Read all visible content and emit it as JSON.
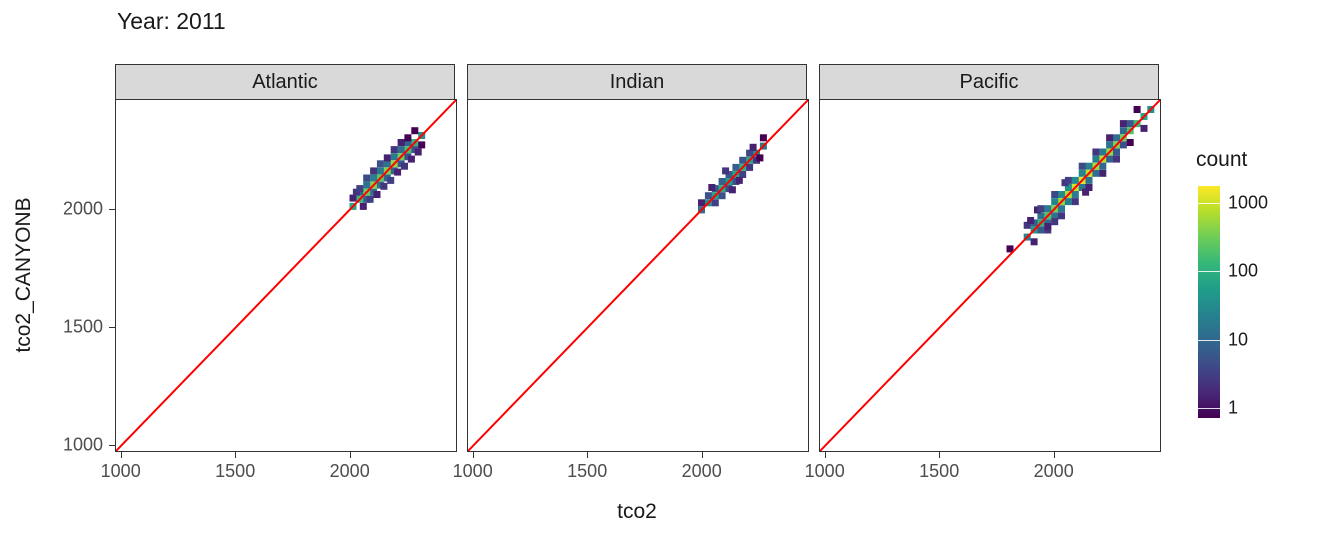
{
  "title": "Year: 2011",
  "chart_data": {
    "type": "heatmap",
    "subtype": "binned 2d density (geom_bin2d), faceted by ocean basin",
    "title": "Year: 2011",
    "xlabel": "tco2",
    "ylabel": "tco2_CANYONB",
    "xlim": [
      975,
      2460
    ],
    "ylim": [
      975,
      2460
    ],
    "x_ticks": [
      1000,
      1500,
      2000
    ],
    "y_ticks": [
      1000,
      1500,
      2000
    ],
    "grid": false,
    "reference_line": {
      "equation": "y = x",
      "color": "#FF0000"
    },
    "legend": {
      "title": "count",
      "scale": "log10",
      "ticks": [
        1,
        10,
        100,
        1000
      ],
      "log_range": [
        -0.15,
        3.25
      ],
      "log_max": 3.2,
      "position": "right",
      "colormap": "viridis"
    },
    "bin_size": 30,
    "facets": [
      {
        "label": "Atlantic",
        "bins": [
          [
            2010,
            2010,
            80
          ],
          [
            2040,
            2040,
            150
          ],
          [
            2070,
            2070,
            300
          ],
          [
            2100,
            2100,
            420
          ],
          [
            2130,
            2130,
            250
          ],
          [
            2160,
            2160,
            380
          ],
          [
            2190,
            2190,
            500
          ],
          [
            2220,
            2220,
            320
          ],
          [
            2250,
            2250,
            180
          ],
          [
            2280,
            2280,
            120
          ],
          [
            2310,
            2310,
            40
          ],
          [
            2040,
            2070,
            12
          ],
          [
            2070,
            2100,
            18
          ],
          [
            2100,
            2130,
            25
          ],
          [
            2130,
            2160,
            20
          ],
          [
            2160,
            2190,
            15
          ],
          [
            2190,
            2220,
            22
          ],
          [
            2220,
            2250,
            14
          ],
          [
            2250,
            2280,
            10
          ],
          [
            2070,
            2040,
            9
          ],
          [
            2100,
            2070,
            14
          ],
          [
            2130,
            2100,
            16
          ],
          [
            2160,
            2130,
            12
          ],
          [
            2190,
            2160,
            10
          ],
          [
            2220,
            2190,
            8
          ],
          [
            2250,
            2220,
            7
          ],
          [
            2280,
            2250,
            6
          ],
          [
            2010,
            2045,
            2
          ],
          [
            2025,
            2070,
            3
          ],
          [
            2040,
            2085,
            4
          ],
          [
            2055,
            2010,
            2
          ],
          [
            2070,
            2130,
            5
          ],
          [
            2085,
            2040,
            4
          ],
          [
            2100,
            2160,
            3
          ],
          [
            2115,
            2060,
            2
          ],
          [
            2130,
            2190,
            6
          ],
          [
            2145,
            2095,
            3
          ],
          [
            2160,
            2215,
            2
          ],
          [
            2175,
            2120,
            4
          ],
          [
            2190,
            2250,
            3
          ],
          [
            2205,
            2155,
            2
          ],
          [
            2220,
            2280,
            2
          ],
          [
            2235,
            2180,
            3
          ],
          [
            2250,
            2300,
            1
          ],
          [
            2265,
            2210,
            2
          ],
          [
            2280,
            2330,
            1
          ],
          [
            2295,
            2240,
            2
          ],
          [
            2310,
            2270,
            1
          ]
        ]
      },
      {
        "label": "Indian",
        "bins": [
          [
            1995,
            1995,
            15
          ],
          [
            2025,
            2025,
            40
          ],
          [
            2055,
            2055,
            70
          ],
          [
            2085,
            2085,
            90
          ],
          [
            2115,
            2115,
            60
          ],
          [
            2145,
            2145,
            80
          ],
          [
            2175,
            2175,
            100
          ],
          [
            2205,
            2205,
            70
          ],
          [
            2235,
            2235,
            40
          ],
          [
            2265,
            2265,
            20
          ],
          [
            2025,
            2055,
            6
          ],
          [
            2055,
            2085,
            8
          ],
          [
            2085,
            2115,
            10
          ],
          [
            2115,
            2145,
            8
          ],
          [
            2145,
            2175,
            9
          ],
          [
            2175,
            2205,
            7
          ],
          [
            2205,
            2235,
            5
          ],
          [
            2055,
            2025,
            4
          ],
          [
            2085,
            2055,
            6
          ],
          [
            2115,
            2085,
            5
          ],
          [
            2145,
            2115,
            6
          ],
          [
            2175,
            2145,
            4
          ],
          [
            2205,
            2175,
            3
          ],
          [
            2235,
            2205,
            3
          ],
          [
            1995,
            2025,
            2
          ],
          [
            2040,
            2090,
            2
          ],
          [
            2100,
            2160,
            3
          ],
          [
            2130,
            2080,
            2
          ],
          [
            2160,
            2120,
            2
          ],
          [
            2220,
            2260,
            2
          ],
          [
            2250,
            2215,
            1
          ],
          [
            2265,
            2300,
            1
          ]
        ]
      },
      {
        "label": "Pacific",
        "bins": [
          [
            1880,
            1880,
            30
          ],
          [
            1910,
            1910,
            60
          ],
          [
            1940,
            1940,
            120
          ],
          [
            1970,
            1970,
            200
          ],
          [
            2000,
            2000,
            350
          ],
          [
            2030,
            2030,
            500
          ],
          [
            2060,
            2060,
            700
          ],
          [
            2090,
            2090,
            900
          ],
          [
            2120,
            2120,
            1100
          ],
          [
            2150,
            2150,
            800
          ],
          [
            2180,
            2180,
            600
          ],
          [
            2210,
            2210,
            700
          ],
          [
            2240,
            2240,
            500
          ],
          [
            2270,
            2270,
            400
          ],
          [
            2300,
            2300,
            300
          ],
          [
            2330,
            2330,
            200
          ],
          [
            2360,
            2360,
            150
          ],
          [
            2390,
            2390,
            80
          ],
          [
            2420,
            2420,
            40
          ],
          [
            1910,
            1940,
            10
          ],
          [
            1940,
            1970,
            15
          ],
          [
            1970,
            2000,
            22
          ],
          [
            2000,
            2030,
            30
          ],
          [
            2030,
            2060,
            35
          ],
          [
            2060,
            2090,
            40
          ],
          [
            2090,
            2120,
            35
          ],
          [
            2120,
            2150,
            30
          ],
          [
            2150,
            2180,
            28
          ],
          [
            2180,
            2210,
            25
          ],
          [
            2210,
            2240,
            20
          ],
          [
            2240,
            2270,
            18
          ],
          [
            2270,
            2300,
            15
          ],
          [
            2300,
            2330,
            12
          ],
          [
            2330,
            2360,
            8
          ],
          [
            1940,
            1910,
            8
          ],
          [
            1970,
            1940,
            12
          ],
          [
            2000,
            1970,
            16
          ],
          [
            2030,
            2000,
            20
          ],
          [
            2060,
            2030,
            25
          ],
          [
            2090,
            2060,
            22
          ],
          [
            2120,
            2090,
            18
          ],
          [
            2150,
            2120,
            16
          ],
          [
            2180,
            2150,
            14
          ],
          [
            2210,
            2180,
            12
          ],
          [
            2240,
            2210,
            10
          ],
          [
            2270,
            2240,
            8
          ],
          [
            2300,
            2270,
            6
          ],
          [
            1805,
            1830,
            1
          ],
          [
            1880,
            1930,
            3
          ],
          [
            1895,
            1950,
            2
          ],
          [
            1910,
            1860,
            2
          ],
          [
            1925,
            1995,
            2
          ],
          [
            1940,
            2000,
            4
          ],
          [
            1970,
            1910,
            3
          ],
          [
            1970,
            1925,
            2
          ],
          [
            2000,
            2060,
            5
          ],
          [
            2000,
            1945,
            3
          ],
          [
            2030,
            1970,
            3
          ],
          [
            2045,
            2110,
            3
          ],
          [
            2060,
            2120,
            4
          ],
          [
            2090,
            2030,
            3
          ],
          [
            2120,
            2180,
            5
          ],
          [
            2135,
            2070,
            2
          ],
          [
            2150,
            2090,
            2
          ],
          [
            2180,
            2240,
            3
          ],
          [
            2210,
            2150,
            2
          ],
          [
            2240,
            2300,
            2
          ],
          [
            2270,
            2210,
            3
          ],
          [
            2300,
            2360,
            2
          ],
          [
            2330,
            2280,
            1
          ],
          [
            2360,
            2420,
            1
          ],
          [
            2390,
            2340,
            2
          ]
        ]
      }
    ]
  },
  "colors": {
    "strip_bg": "#D9D9D9",
    "strip_border": "#333333",
    "panel_border": "#333333",
    "panel_bg": "#FFFFFF",
    "reference_line": "#FF0000",
    "tick_label": "#4D4D4D",
    "axis_title": "#1A1A1A",
    "viridis_stops": [
      "#440154",
      "#482878",
      "#3E4A89",
      "#31688E",
      "#26828E",
      "#1F9E89",
      "#35B779",
      "#6DCD59",
      "#B4DE2C",
      "#FDE725"
    ]
  }
}
